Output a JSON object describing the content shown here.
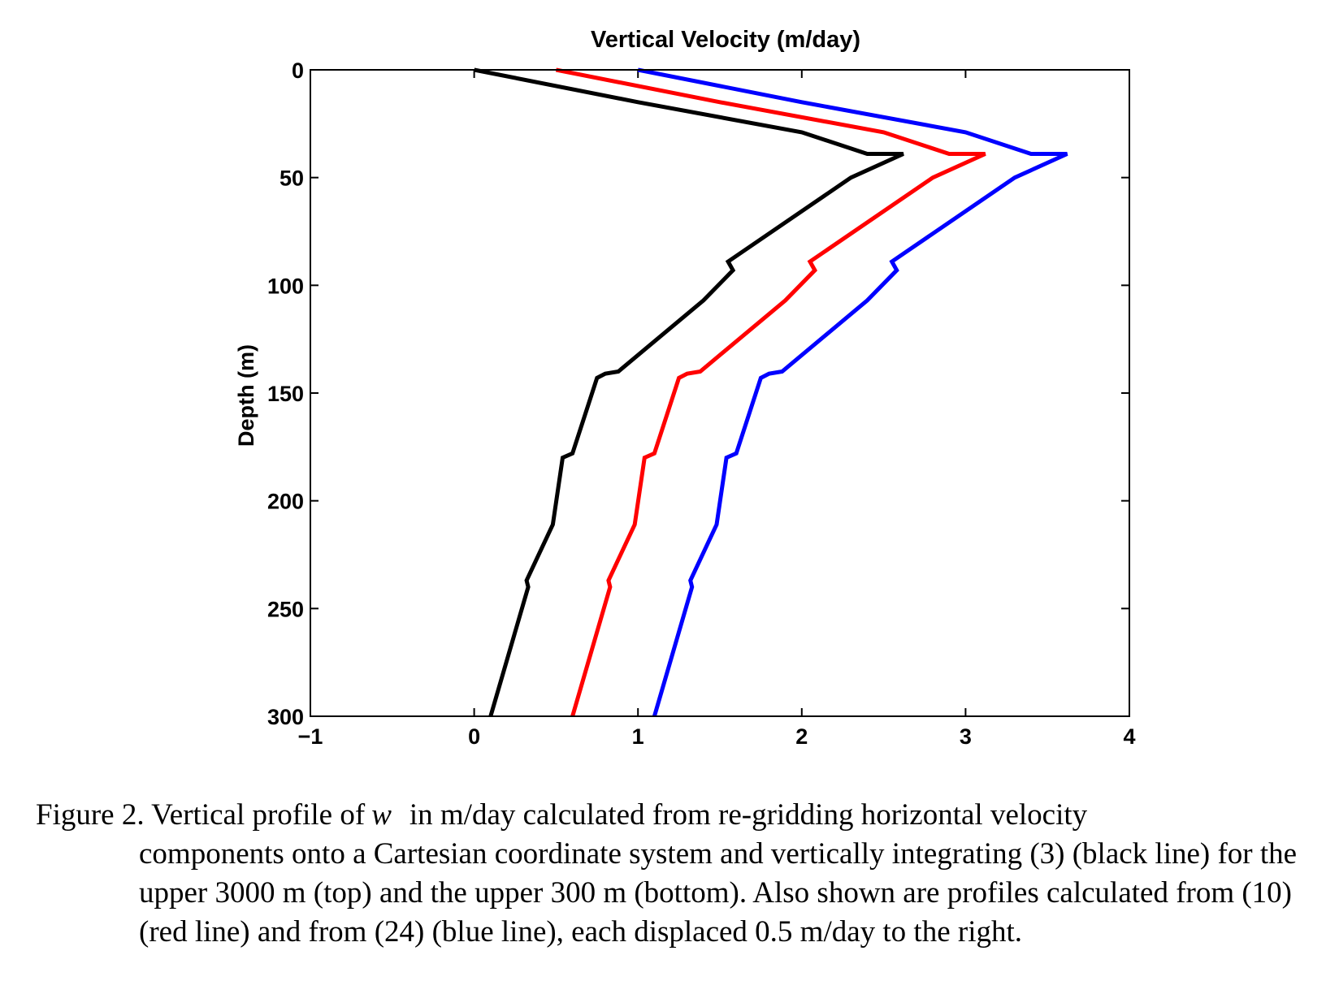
{
  "chart_data": {
    "type": "line",
    "title": "Vertical Velocity (m/day)",
    "xlabel": "",
    "ylabel": "Depth (m)",
    "xlim": [
      -1,
      4
    ],
    "ylim": [
      300,
      0
    ],
    "y_axis_inverted": true,
    "x_ticks": [
      -1,
      0,
      1,
      2,
      3,
      4
    ],
    "y_ticks": [
      0,
      50,
      100,
      150,
      200,
      250,
      300
    ],
    "grid": false,
    "legend": "none",
    "series": [
      {
        "color": "#000000",
        "points": [
          [
            0.0,
            0
          ],
          [
            1.0,
            15
          ],
          [
            2.0,
            29
          ],
          [
            2.4,
            39
          ],
          [
            2.62,
            39
          ],
          [
            2.3,
            50
          ],
          [
            1.55,
            89
          ],
          [
            1.58,
            93
          ],
          [
            1.4,
            107
          ],
          [
            0.88,
            140
          ],
          [
            0.8,
            141
          ],
          [
            0.75,
            143
          ],
          [
            0.6,
            178
          ],
          [
            0.54,
            180
          ],
          [
            0.48,
            211
          ],
          [
            0.32,
            237
          ],
          [
            0.33,
            240
          ],
          [
            0.1,
            300
          ]
        ]
      },
      {
        "color": "#ff0000",
        "points": [
          [
            0.5,
            0
          ],
          [
            1.5,
            15
          ],
          [
            2.5,
            29
          ],
          [
            2.9,
            39
          ],
          [
            3.12,
            39
          ],
          [
            2.8,
            50
          ],
          [
            2.05,
            89
          ],
          [
            2.08,
            93
          ],
          [
            1.9,
            107
          ],
          [
            1.38,
            140
          ],
          [
            1.3,
            141
          ],
          [
            1.25,
            143
          ],
          [
            1.1,
            178
          ],
          [
            1.04,
            180
          ],
          [
            0.98,
            211
          ],
          [
            0.82,
            237
          ],
          [
            0.83,
            240
          ],
          [
            0.6,
            300
          ]
        ]
      },
      {
        "color": "#0000ff",
        "points": [
          [
            1.0,
            0
          ],
          [
            2.0,
            15
          ],
          [
            3.0,
            29
          ],
          [
            3.4,
            39
          ],
          [
            3.62,
            39
          ],
          [
            3.3,
            50
          ],
          [
            2.55,
            89
          ],
          [
            2.58,
            93
          ],
          [
            2.4,
            107
          ],
          [
            1.88,
            140
          ],
          [
            1.8,
            141
          ],
          [
            1.75,
            143
          ],
          [
            1.6,
            178
          ],
          [
            1.54,
            180
          ],
          [
            1.48,
            211
          ],
          [
            1.32,
            237
          ],
          [
            1.33,
            240
          ],
          [
            1.1,
            300
          ]
        ]
      }
    ]
  },
  "caption": {
    "first_line_prefix": "Figure 2. Vertical profile of",
    "math_symbol": "w",
    "first_line_suffix": "in m/day calculated from re-gridding horizontal velocity",
    "continuation": "components onto a Cartesian coordinate system and vertically integrating (3) (black line) for the upper 3000 m (top) and the upper 300 m (bottom). Also shown are profiles calculated from (10) (red line) and from (24) (blue line), each displaced 0.5 m/day to the right."
  }
}
